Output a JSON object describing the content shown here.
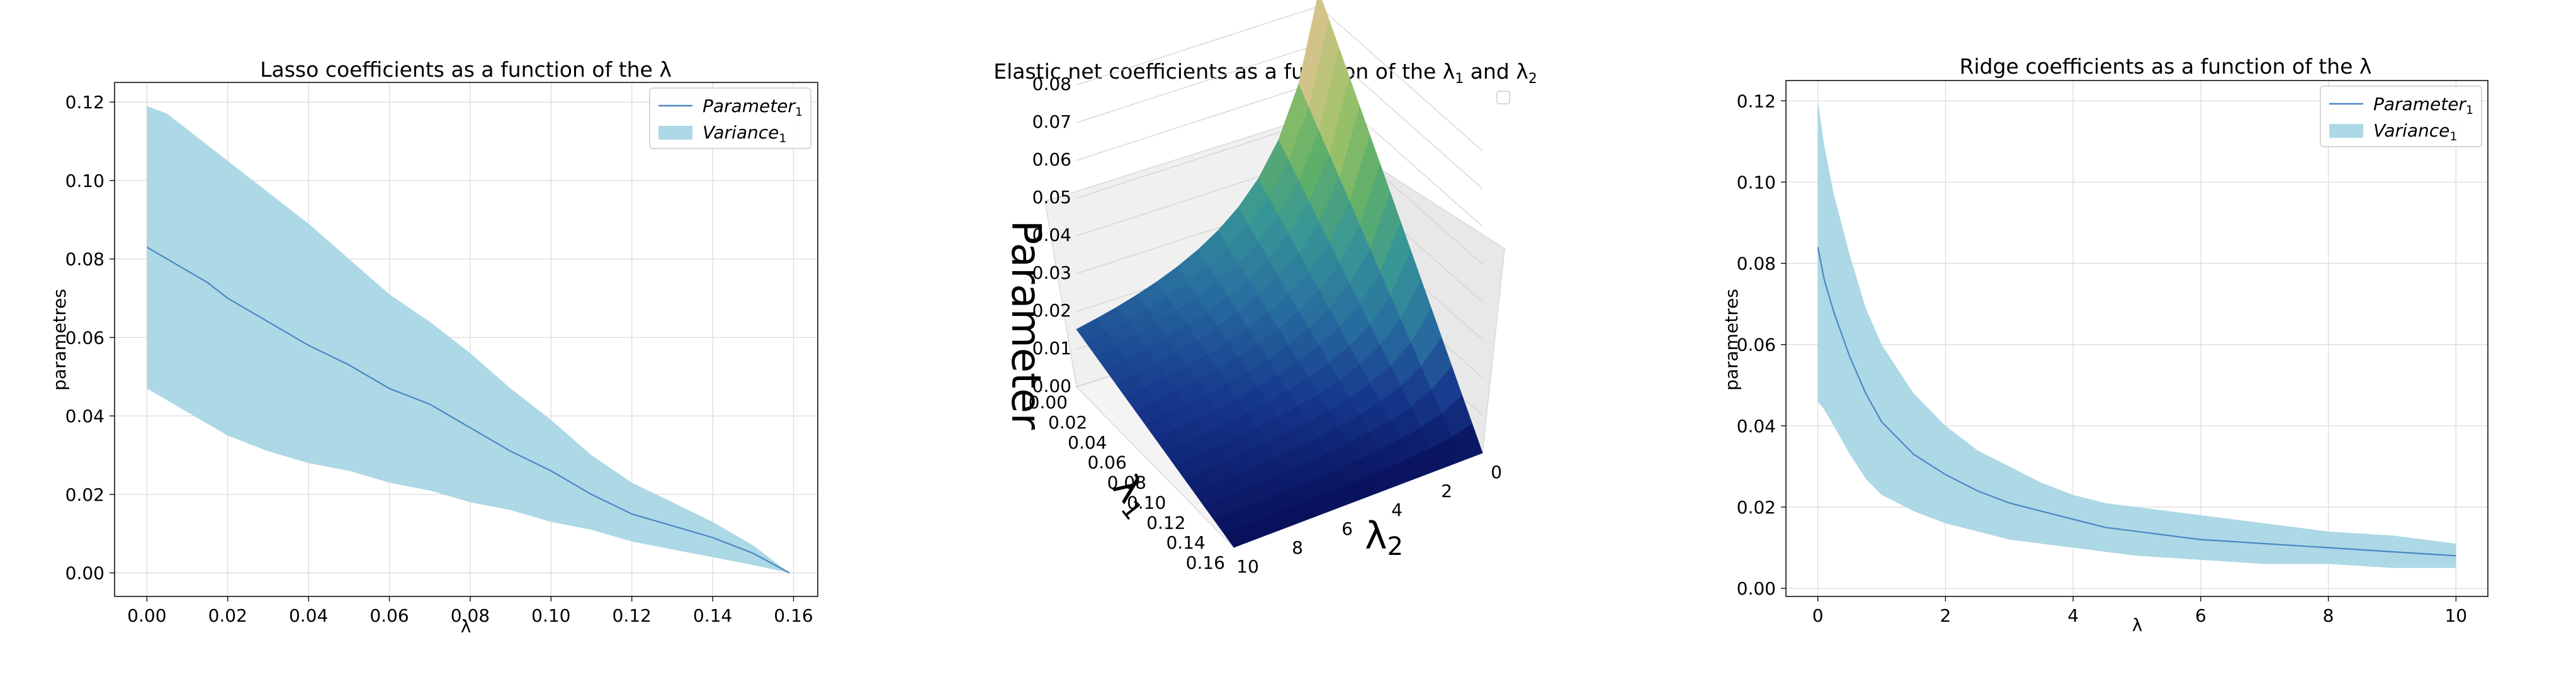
{
  "chart_data": [
    {
      "type": "area",
      "title": "Lasso coefficients as a function of the λ",
      "xlabel": "λ",
      "ylabel": "parametres",
      "xlim": [
        -0.008,
        0.166
      ],
      "ylim": [
        -0.006,
        0.125
      ],
      "xticks": [
        "0.00",
        "0.02",
        "0.04",
        "0.06",
        "0.08",
        "0.10",
        "0.12",
        "0.14",
        "0.16"
      ],
      "xtick_values": [
        0,
        0.02,
        0.04,
        0.06,
        0.08,
        0.1,
        0.12,
        0.14,
        0.16
      ],
      "yticks": [
        "0.00",
        "0.02",
        "0.04",
        "0.06",
        "0.08",
        "0.10",
        "0.12"
      ],
      "ytick_values": [
        0,
        0.02,
        0.04,
        0.06,
        0.08,
        0.1,
        0.12
      ],
      "grid": true,
      "legend_position": "top-right",
      "legend": {
        "line": "Parameter",
        "line_sub": "1",
        "band": "Variance",
        "band_sub": "1"
      },
      "colors": {
        "line": "#4a87c4",
        "band": "#add8e6"
      },
      "series": [
        {
          "name": "Parameter₁",
          "x": [
            0,
            0.005,
            0.01,
            0.015,
            0.02,
            0.03,
            0.04,
            0.05,
            0.06,
            0.07,
            0.08,
            0.09,
            0.1,
            0.11,
            0.12,
            0.13,
            0.14,
            0.15,
            0.159
          ],
          "y": [
            0.083,
            0.08,
            0.077,
            0.074,
            0.07,
            0.064,
            0.058,
            0.053,
            0.047,
            0.043,
            0.037,
            0.031,
            0.026,
            0.02,
            0.015,
            0.012,
            0.009,
            0.005,
            0.0
          ],
          "lower": [
            0.047,
            0.044,
            0.041,
            0.038,
            0.035,
            0.031,
            0.028,
            0.026,
            0.023,
            0.021,
            0.018,
            0.016,
            0.013,
            0.011,
            0.008,
            0.006,
            0.004,
            0.002,
            0.0
          ],
          "upper": [
            0.119,
            0.117,
            0.113,
            0.109,
            0.105,
            0.097,
            0.089,
            0.08,
            0.071,
            0.064,
            0.056,
            0.047,
            0.039,
            0.03,
            0.023,
            0.018,
            0.013,
            0.007,
            0.0
          ]
        }
      ]
    },
    {
      "type": "surface3d",
      "title": "Elastic net coefficients as a function of the λ",
      "title_sub_1": "1",
      "title_mid": " and λ",
      "title_sub_2": "2",
      "xlabel": "λ",
      "xlabel_sub": "1",
      "ylabel": "λ",
      "ylabel_sub": "2",
      "zlabel": "Parameter",
      "lambda1_ticks": [
        "0.00",
        "0.02",
        "0.04",
        "0.06",
        "0.08",
        "0.10",
        "0.12",
        "0.14",
        "0.16"
      ],
      "lambda1_range": [
        0,
        0.16
      ],
      "lambda2_ticks": [
        "0",
        "2",
        "4",
        "6",
        "8",
        "10"
      ],
      "lambda2_range": [
        0,
        10
      ],
      "z_ticks": [
        "0.00",
        "0.01",
        "0.02",
        "0.03",
        "0.04",
        "0.05",
        "0.06",
        "0.07",
        "0.08"
      ],
      "zlim": [
        0,
        0.08
      ],
      "colormap": "gist_earth",
      "legend_position": "top-right"
    },
    {
      "type": "area",
      "title": "Ridge coefficients as a function of the λ",
      "xlabel": "λ",
      "ylabel": "parametres",
      "xlim": [
        -0.5,
        10.5
      ],
      "ylim": [
        -0.002,
        0.125
      ],
      "xticks": [
        "0",
        "2",
        "4",
        "6",
        "8",
        "10"
      ],
      "xtick_values": [
        0,
        2,
        4,
        6,
        8,
        10
      ],
      "yticks": [
        "0.00",
        "0.02",
        "0.04",
        "0.06",
        "0.08",
        "0.10",
        "0.12"
      ],
      "ytick_values": [
        0,
        0.02,
        0.04,
        0.06,
        0.08,
        0.1,
        0.12
      ],
      "grid": true,
      "legend_position": "top-right",
      "legend": {
        "line": "Parameter",
        "line_sub": "1",
        "band": "Variance",
        "band_sub": "1"
      },
      "colors": {
        "line": "#4a87c4",
        "band": "#add8e6"
      },
      "series": [
        {
          "name": "Parameter₁",
          "x": [
            0,
            0.1,
            0.25,
            0.5,
            0.75,
            1,
            1.5,
            2,
            2.5,
            3,
            3.5,
            4,
            4.5,
            5,
            6,
            7,
            8,
            9,
            10
          ],
          "y": [
            0.084,
            0.076,
            0.068,
            0.057,
            0.048,
            0.041,
            0.033,
            0.028,
            0.024,
            0.021,
            0.019,
            0.017,
            0.015,
            0.014,
            0.012,
            0.011,
            0.01,
            0.009,
            0.008
          ],
          "lower": [
            0.046,
            0.044,
            0.04,
            0.033,
            0.027,
            0.023,
            0.019,
            0.016,
            0.014,
            0.012,
            0.011,
            0.01,
            0.009,
            0.008,
            0.007,
            0.006,
            0.006,
            0.005,
            0.005
          ],
          "upper": [
            0.12,
            0.109,
            0.097,
            0.082,
            0.069,
            0.06,
            0.048,
            0.04,
            0.034,
            0.03,
            0.026,
            0.023,
            0.021,
            0.02,
            0.018,
            0.016,
            0.014,
            0.013,
            0.011
          ]
        }
      ]
    }
  ]
}
